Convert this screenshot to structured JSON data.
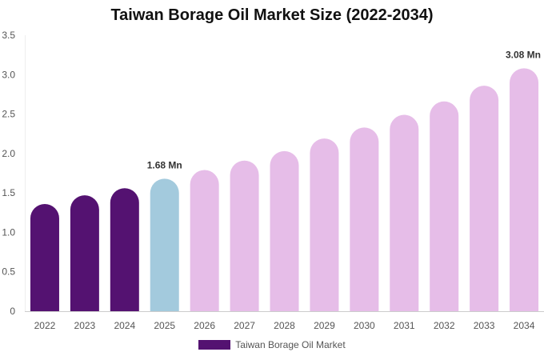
{
  "chart_data": {
    "type": "bar",
    "title": "Taiwan Borage Oil Market Size (2022-2034)",
    "xlabel": "",
    "ylabel": "",
    "categories": [
      "2022",
      "2023",
      "2024",
      "2025",
      "2026",
      "2027",
      "2028",
      "2029",
      "2030",
      "2031",
      "2032",
      "2033",
      "2034"
    ],
    "series": [
      {
        "name": "Taiwan Borage Oil Market",
        "values": [
          1.36,
          1.47,
          1.56,
          1.68,
          1.79,
          1.91,
          2.03,
          2.19,
          2.33,
          2.49,
          2.66,
          2.86,
          3.08
        ]
      }
    ],
    "bar_colors": [
      "#541271",
      "#541271",
      "#541271",
      "#a3cadd",
      "#e6bde8",
      "#e6bde8",
      "#e6bde8",
      "#e6bde8",
      "#e6bde8",
      "#e6bde8",
      "#e6bde8",
      "#e6bde8",
      "#e6bde8"
    ],
    "legend_color": "#541271",
    "ylim": [
      0,
      3.5
    ],
    "yticks": [
      "0",
      "0.5",
      "1.0",
      "1.5",
      "2.0",
      "2.5",
      "3.0",
      "3.5"
    ],
    "ytick_values": [
      0,
      0.5,
      1.0,
      1.5,
      2.0,
      2.5,
      3.0,
      3.5
    ],
    "grid": false,
    "legend_position": "bottom",
    "annotations": [
      {
        "category": "2025",
        "text": "1.68 Mn"
      },
      {
        "category": "2034",
        "text": "3.08 Mn"
      }
    ]
  }
}
